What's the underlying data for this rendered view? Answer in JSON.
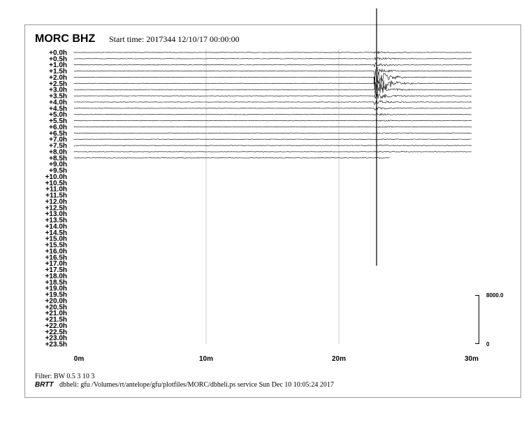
{
  "header": {
    "title": "MORC BHZ",
    "start_time": "Start time: 2017344 12/10/17 00:00:00"
  },
  "rows": [
    "+0.0h",
    "+0.5h",
    "+1.0h",
    "+1.5h",
    "+2.0h",
    "+2.5h",
    "+3.0h",
    "+3.5h",
    "+4.0h",
    "+4.5h",
    "+5.0h",
    "+5.5h",
    "+6.0h",
    "+6.5h",
    "+7.0h",
    "+7.5h",
    "+8.0h",
    "+8.5h",
    "+9.0h",
    "+9.5h",
    "+10.0h",
    "+10.5h",
    "+11.0h",
    "+11.5h",
    "+12.0h",
    "+12.5h",
    "+13.0h",
    "+13.5h",
    "+14.0h",
    "+14.5h",
    "+15.0h",
    "+15.5h",
    "+16.0h",
    "+16.5h",
    "+17.0h",
    "+17.5h",
    "+18.0h",
    "+18.5h",
    "+19.0h",
    "+19.5h",
    "+20.0h",
    "+20.5h",
    "+21.0h",
    "+21.5h",
    "+22.0h",
    "+22.5h",
    "+23.0h",
    "+23.5h"
  ],
  "x_axis": [
    "0m",
    "10m",
    "20m",
    "30m"
  ],
  "scale": {
    "top": "8000.0",
    "bottom": "0"
  },
  "footer": {
    "filter": "Filter: BW 0.5 3 10 3",
    "brand": "BRTT",
    "info": "dbheli: gfu /Volumes/rt/antelope/gfu/plotfiles/MORC/dbheli.ps service Sun Dec 10 10:05:24 2017"
  }
}
